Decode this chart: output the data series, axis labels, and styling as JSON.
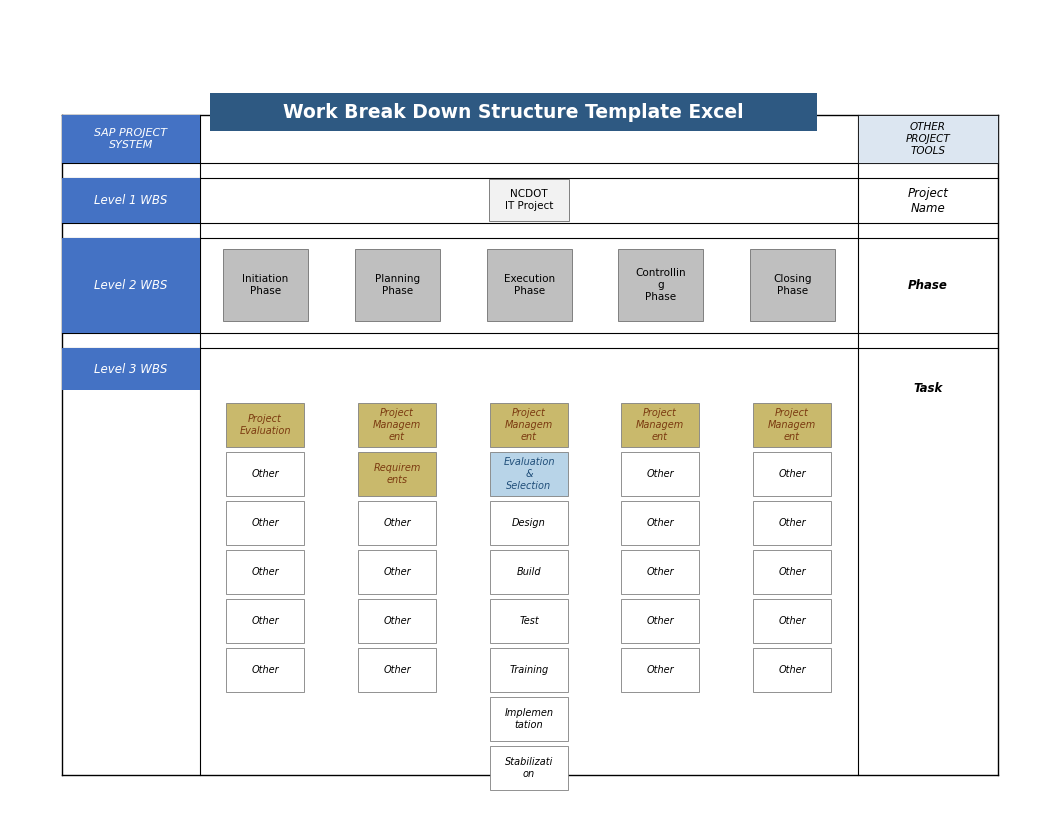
{
  "title": "Work Break Down Structure Template Excel",
  "title_bg": "#2e5982",
  "title_fg": "#ffffff",
  "left_header_bg": "#4472c4",
  "left_header_fg": "#ffffff",
  "right_header_bg": "#dce6f1",
  "phase_boxes_labels": [
    "Initiation\nPhase",
    "Planning\nPhase",
    "Execution\nPhase",
    "Controllin\ng\nPhase",
    "Closing\nPhase"
  ],
  "phase_box_bg": "#bfbfbf",
  "level1_label": "NCDOT\nIT Project",
  "level1_bg": "#f2f2f2",
  "task_rows": [
    {
      "labels": [
        "Project\nEvaluation",
        "Project\nManagem\nent",
        "Project\nManagem\nent",
        "Project\nManagem\nent",
        "Project\nManagem\nent"
      ],
      "colors": [
        "#c9b96c",
        "#c9b96c",
        "#c9b96c",
        "#c9b96c",
        "#c9b96c"
      ],
      "fgcolors": [
        "#7b3a10",
        "#7b3a10",
        "#7b3a10",
        "#7b3a10",
        "#7b3a10"
      ]
    },
    {
      "labels": [
        "Other",
        "Requirem\nents",
        "Evaluation\n&\nSelection",
        "Other",
        "Other"
      ],
      "colors": [
        "#ffffff",
        "#c9b96c",
        "#b8d4e8",
        "#ffffff",
        "#ffffff"
      ],
      "fgcolors": [
        "#000000",
        "#7b3a10",
        "#1f4e79",
        "#000000",
        "#000000"
      ]
    },
    {
      "labels": [
        "Other",
        "Other",
        "Design",
        "Other",
        "Other"
      ],
      "colors": [
        "#ffffff",
        "#ffffff",
        "#ffffff",
        "#ffffff",
        "#ffffff"
      ],
      "fgcolors": [
        "#000000",
        "#000000",
        "#000000",
        "#000000",
        "#000000"
      ]
    },
    {
      "labels": [
        "Other",
        "Other",
        "Build",
        "Other",
        "Other"
      ],
      "colors": [
        "#ffffff",
        "#ffffff",
        "#ffffff",
        "#ffffff",
        "#ffffff"
      ],
      "fgcolors": [
        "#000000",
        "#000000",
        "#000000",
        "#000000",
        "#000000"
      ]
    },
    {
      "labels": [
        "Other",
        "Other",
        "Test",
        "Other",
        "Other"
      ],
      "colors": [
        "#ffffff",
        "#ffffff",
        "#ffffff",
        "#ffffff",
        "#ffffff"
      ],
      "fgcolors": [
        "#000000",
        "#000000",
        "#000000",
        "#000000",
        "#000000"
      ]
    },
    {
      "labels": [
        "Other",
        "Other",
        "Training",
        "Other",
        "Other"
      ],
      "colors": [
        "#ffffff",
        "#ffffff",
        "#ffffff",
        "#ffffff",
        "#ffffff"
      ],
      "fgcolors": [
        "#000000",
        "#000000",
        "#000000",
        "#000000",
        "#000000"
      ]
    },
    {
      "labels": [
        "",
        "",
        "Implemen\ntation",
        "",
        ""
      ],
      "colors": [
        "#ffffff",
        "#ffffff",
        "#ffffff",
        "#ffffff",
        "#ffffff"
      ],
      "fgcolors": [
        "#000000",
        "#000000",
        "#000000",
        "#000000",
        "#000000"
      ]
    },
    {
      "labels": [
        "",
        "",
        "Stabilizati\non",
        "",
        ""
      ],
      "colors": [
        "#ffffff",
        "#ffffff",
        "#ffffff",
        "#ffffff",
        "#ffffff"
      ],
      "fgcolors": [
        "#000000",
        "#000000",
        "#000000",
        "#000000",
        "#000000"
      ]
    }
  ],
  "bg_color": "#ffffff",
  "border_color": "#000000",
  "cell_border": "#808080"
}
